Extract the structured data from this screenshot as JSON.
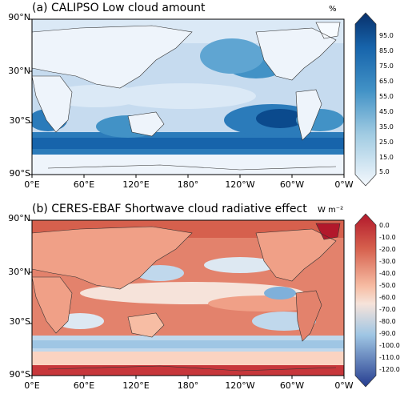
{
  "panels": [
    {
      "title": "(a) CALIPSO Low cloud amount",
      "unit": "%",
      "yticks": [
        "90°N",
        "30°N",
        "30°S",
        "90°S"
      ],
      "xticks": [
        "0°E",
        "60°E",
        "120°E",
        "180°",
        "120°W",
        "60°W",
        "0°W"
      ],
      "colorbar_labels": [
        "95.0",
        "85.0",
        "75.0",
        "65.0",
        "55.0",
        "45.0",
        "35.0",
        "25.0",
        "15.0",
        "5.0"
      ],
      "colors": [
        "#08306b",
        "#0b4a8d",
        "#1764ab",
        "#2b7bba",
        "#4292c6",
        "#5fa5d2",
        "#7db8da",
        "#a0cbe2",
        "#c1d9ed",
        "#dbe9f6",
        "#eef4fb"
      ]
    },
    {
      "title": "(b) CERES-EBAF Shortwave cloud radiative effect",
      "unit": "W m⁻²",
      "yticks": [
        "90°N",
        "30°N",
        "30°S",
        "90°S"
      ],
      "xticks": [
        "0°E",
        "60°E",
        "120°E",
        "180°",
        "120°W",
        "60°W",
        "0°W"
      ],
      "colorbar_labels": [
        "0.0",
        "-10.0",
        "-20.0",
        "-30.0",
        "-40.0",
        "-50.0",
        "-60.0",
        "-70.0",
        "-80.0",
        "-90.0",
        "-100.0",
        "-110.0",
        "-120.0"
      ],
      "colors": [
        "#b2182b",
        "#c7373b",
        "#d6604d",
        "#e3826c",
        "#f0a087",
        "#f7bda4",
        "#fbd3c1",
        "#f6e3da",
        "#dde8f2",
        "#c0d8ec",
        "#9fc6e4",
        "#7fb0da",
        "#5f94cc",
        "#4677bd",
        "#3359a8",
        "#253c8f"
      ]
    }
  ]
}
